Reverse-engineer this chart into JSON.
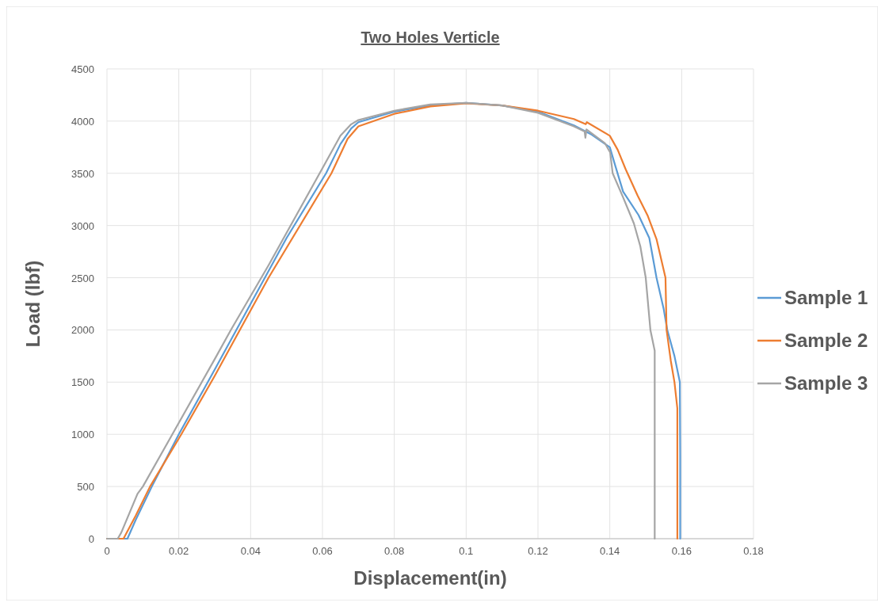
{
  "chart_data": {
    "type": "line",
    "title": "Two Holes Verticle",
    "xlabel": "Displacement(in)",
    "ylabel": "Load (lbf)",
    "xlim": [
      0,
      0.18
    ],
    "xticks": [
      0,
      0.02,
      0.04,
      0.06,
      0.08,
      0.1,
      0.12,
      0.14,
      0.16,
      0.18
    ],
    "ylim": [
      0,
      4500
    ],
    "yticks": [
      0,
      500,
      1000,
      1500,
      2000,
      2500,
      3000,
      3500,
      4000,
      4500
    ],
    "grid": true,
    "legend": "right",
    "series": [
      {
        "name": "Sample 1",
        "color": "#5b9bd5",
        "x": [
          0,
          0.0057,
          0.008,
          0.0125,
          0.02,
          0.03,
          0.04,
          0.05,
          0.061,
          0.065,
          0.068,
          0.07,
          0.08,
          0.09,
          0.1,
          0.11,
          0.12,
          0.13,
          0.135,
          0.14,
          0.1415,
          0.1437,
          0.148,
          0.151,
          0.153,
          0.155,
          0.156,
          0.158,
          0.1595,
          0.1596,
          0.1596
        ],
        "values": [
          0,
          0,
          180,
          500,
          1000,
          1620,
          2250,
          2880,
          3500,
          3780,
          3930,
          3990,
          4090,
          4150,
          4175,
          4150,
          4090,
          3960,
          3870,
          3750,
          3575,
          3325,
          3100,
          2880,
          2500,
          2200,
          2000,
          1750,
          1500,
          800,
          0
        ]
      },
      {
        "name": "Sample 2",
        "color": "#ed7d31",
        "x": [
          0,
          0.0046,
          0.008,
          0.012,
          0.0207,
          0.03,
          0.037,
          0.045,
          0.0625,
          0.067,
          0.07,
          0.08,
          0.09,
          0.1,
          0.11,
          0.12,
          0.13,
          0.1333,
          0.1336,
          0.14,
          0.1422,
          0.1444,
          0.1477,
          0.1506,
          0.153,
          0.1555,
          0.1558,
          0.157,
          0.158,
          0.1588,
          0.1588
        ],
        "values": [
          0,
          0,
          220,
          500,
          1000,
          1560,
          2000,
          2500,
          3500,
          3830,
          3950,
          4070,
          4140,
          4170,
          4150,
          4100,
          4020,
          3970,
          3990,
          3860,
          3725,
          3540,
          3290,
          3090,
          2870,
          2500,
          2000,
          1700,
          1500,
          1250,
          0
        ]
      },
      {
        "name": "Sample 3",
        "color": "#a5a5a5",
        "x": [
          0,
          0.003,
          0.004,
          0.0085,
          0.01,
          0.0182,
          0.03,
          0.0345,
          0.045,
          0.0605,
          0.065,
          0.068,
          0.07,
          0.08,
          0.09,
          0.1,
          0.11,
          0.12,
          0.13,
          0.133,
          0.1332,
          0.1335,
          0.1386,
          0.1401,
          0.1408,
          0.1437,
          0.1467,
          0.1485,
          0.15,
          0.1513,
          0.1525,
          0.1525
        ],
        "values": [
          0,
          0,
          60,
          430,
          500,
          1000,
          1720,
          2000,
          2620,
          3580,
          3860,
          3970,
          4010,
          4100,
          4160,
          4175,
          4150,
          4080,
          3950,
          3900,
          3840,
          3920,
          3790,
          3700,
          3500,
          3270,
          3020,
          2800,
          2500,
          2000,
          1800,
          0
        ]
      }
    ]
  }
}
